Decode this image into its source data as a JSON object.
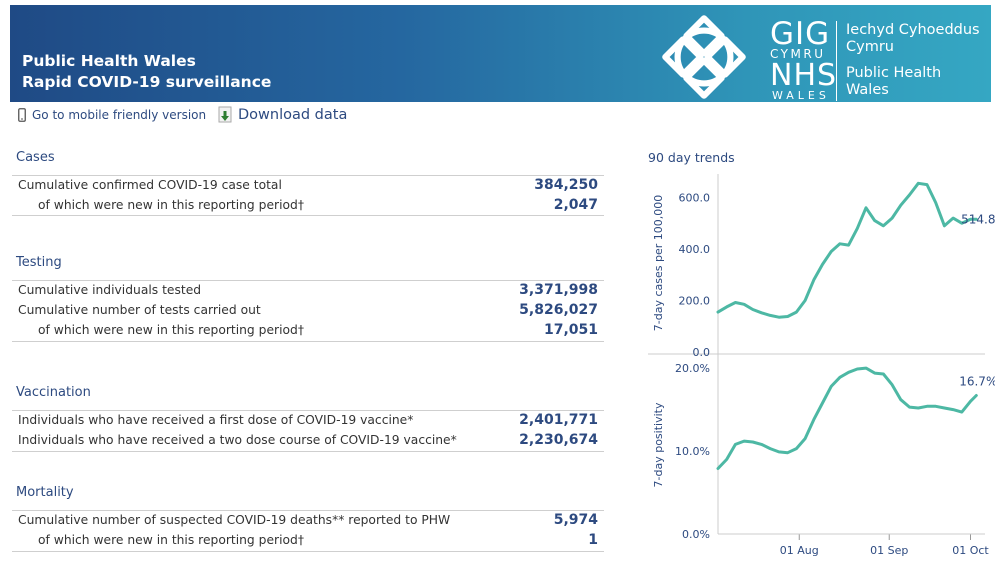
{
  "header": {
    "title_line1": "Public Health Wales",
    "title_line2": "Rapid COVID-19 surveillance",
    "logo": {
      "gig": "GIG",
      "cymru": "CYMRU",
      "nhs": "NHS",
      "wales": "WALES",
      "welsh_name_line1": "Iechyd Cyhoeddus",
      "welsh_name_line2": "Cymru",
      "english_name_line1": "Public Health",
      "english_name_line2": "Wales"
    }
  },
  "toolbar": {
    "mobile_link": "Go to mobile friendly version",
    "download_link": "Download data"
  },
  "sections": {
    "cases": {
      "title": "Cases",
      "rows": [
        {
          "label": "Cumulative confirmed COVID-19 case total",
          "value": "384,250"
        },
        {
          "label": "of which were new in this reporting period†",
          "value": "2,047"
        }
      ]
    },
    "testing": {
      "title": "Testing",
      "rows": [
        {
          "label": "Cumulative individuals tested",
          "value": "3,371,998"
        },
        {
          "label": "Cumulative number of tests carried out",
          "value": "5,826,027"
        },
        {
          "label": "of which were new in this reporting period†",
          "value": "17,051"
        }
      ]
    },
    "vaccination": {
      "title": "Vaccination",
      "rows": [
        {
          "label": "Individuals who have received a first dose of COVID-19 vaccine*",
          "value": "2,401,771"
        },
        {
          "label": "Individuals who have received a two dose course of COVID-19 vaccine*",
          "value": "2,230,674"
        }
      ]
    },
    "mortality": {
      "title": "Mortality",
      "rows": [
        {
          "label": "Cumulative number of suspected COVID-19 deaths** reported to PHW",
          "value": "5,974"
        },
        {
          "label": "of which were new in this reporting period†",
          "value": "1"
        }
      ]
    }
  },
  "trends": {
    "title": "90 day trends",
    "colors": {
      "line": "#4db8a4",
      "axis": "#2d4a80",
      "grid": "#d9d9d9"
    }
  },
  "chart_data": [
    {
      "type": "line",
      "title": "",
      "ylabel": "7-day cases per 100,000",
      "ylim": [
        0,
        660
      ],
      "yticks": [
        0,
        200,
        400,
        600
      ],
      "ytick_labels": [
        "0.0",
        "200.0",
        "400.0",
        "600.0"
      ],
      "last_value_label": "514.8",
      "x": [
        0,
        3,
        6,
        9,
        12,
        15,
        18,
        21,
        24,
        27,
        30,
        33,
        36,
        39,
        42,
        45,
        48,
        51,
        54,
        57,
        60,
        63,
        66,
        69,
        72,
        75,
        78,
        81,
        84,
        87,
        89
      ],
      "values": [
        155,
        175,
        192,
        185,
        165,
        152,
        142,
        135,
        138,
        155,
        200,
        280,
        340,
        390,
        420,
        415,
        480,
        560,
        510,
        490,
        520,
        570,
        610,
        655,
        650,
        580,
        490,
        520,
        500,
        515,
        515
      ]
    },
    {
      "type": "line",
      "title": "",
      "ylabel": "7-day positivity",
      "ylim": [
        0,
        20.5
      ],
      "yticks": [
        0,
        10,
        20
      ],
      "ytick_labels": [
        "0.0%",
        "10.0%",
        "20.0%"
      ],
      "last_value_label": "16.7%",
      "xtick_positions": [
        28,
        59,
        87
      ],
      "xtick_labels": [
        "01 Aug",
        "01 Sep",
        "01 Oct"
      ],
      "x": [
        0,
        3,
        6,
        9,
        12,
        15,
        18,
        21,
        24,
        27,
        30,
        33,
        36,
        39,
        42,
        45,
        48,
        51,
        54,
        57,
        60,
        63,
        66,
        69,
        72,
        75,
        78,
        81,
        84,
        87,
        89
      ],
      "values": [
        7.9,
        9.0,
        10.8,
        11.2,
        11.1,
        10.8,
        10.3,
        9.9,
        9.8,
        10.3,
        11.5,
        13.8,
        15.8,
        17.8,
        18.9,
        19.5,
        19.9,
        20.0,
        19.4,
        19.3,
        18.0,
        16.2,
        15.3,
        15.2,
        15.4,
        15.4,
        15.2,
        15.0,
        14.7,
        16.0,
        16.7
      ]
    }
  ]
}
